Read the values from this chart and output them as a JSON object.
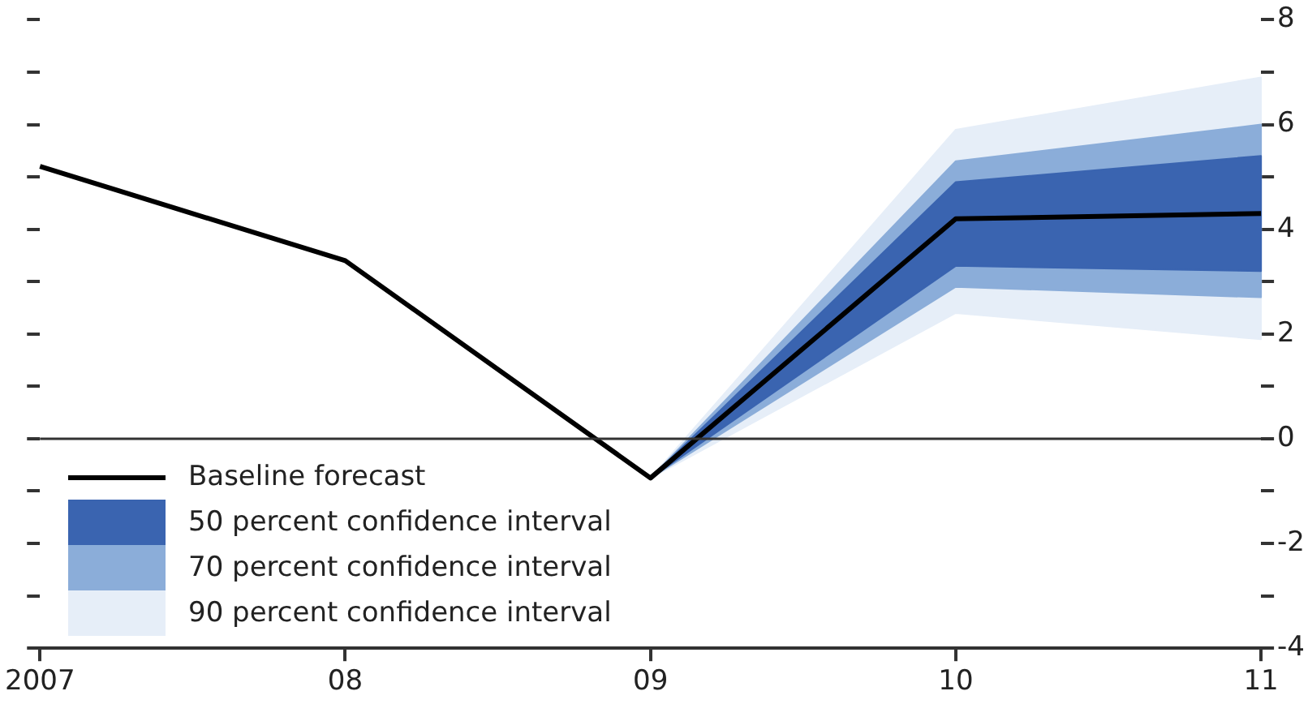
{
  "chart_data": {
    "type": "line",
    "categories": [
      "2007",
      "08",
      "09",
      "10",
      "11"
    ],
    "series": [
      {
        "name": "Baseline forecast",
        "color": "#000000",
        "values": [
          5.2,
          3.4,
          -0.75,
          4.2,
          4.3
        ]
      },
      {
        "type": "line",
        "name": "50 percent confidence interval",
        "color": "#3a64b0",
        "values": [
          null,
          null,
          null,
          null,
          null
        ],
        "lower": [
          null,
          null,
          -0.75,
          3.3,
          3.2
        ],
        "upper": [
          null,
          null,
          -0.75,
          4.9,
          5.4
        ]
      },
      {
        "type": "line",
        "name": "70 percent confidence interval",
        "color": "#8badd9",
        "values": [
          null,
          null,
          null,
          null,
          null
        ],
        "lower": [
          null,
          null,
          -0.75,
          2.9,
          2.7
        ],
        "upper": [
          null,
          null,
          -0.75,
          5.3,
          6.0
        ]
      },
      {
        "type": "line",
        "name": "90 percent confidence interval",
        "color": "#e6eef8",
        "values": [
          null,
          null,
          null,
          null,
          null
        ],
        "lower": [
          null,
          null,
          -0.75,
          2.4,
          1.9
        ],
        "upper": [
          null,
          null,
          -0.75,
          5.9,
          6.9
        ]
      }
    ],
    "ylim": [
      -4,
      8
    ],
    "yticks": [
      -4,
      {
        "value": -3,
        "label": null
      },
      -2,
      {
        "value": -1,
        "label": null
      },
      0,
      {
        "value": 1,
        "label": null
      },
      2,
      {
        "value": 3,
        "label": null
      },
      4,
      {
        "value": 5,
        "label": null
      },
      6,
      {
        "value": 7,
        "label": null
      },
      8
    ],
    "ref_lines": [
      {
        "axis": "y",
        "value": 0,
        "color": "#333333"
      }
    ],
    "grid": false,
    "legend": "bottom left"
  }
}
